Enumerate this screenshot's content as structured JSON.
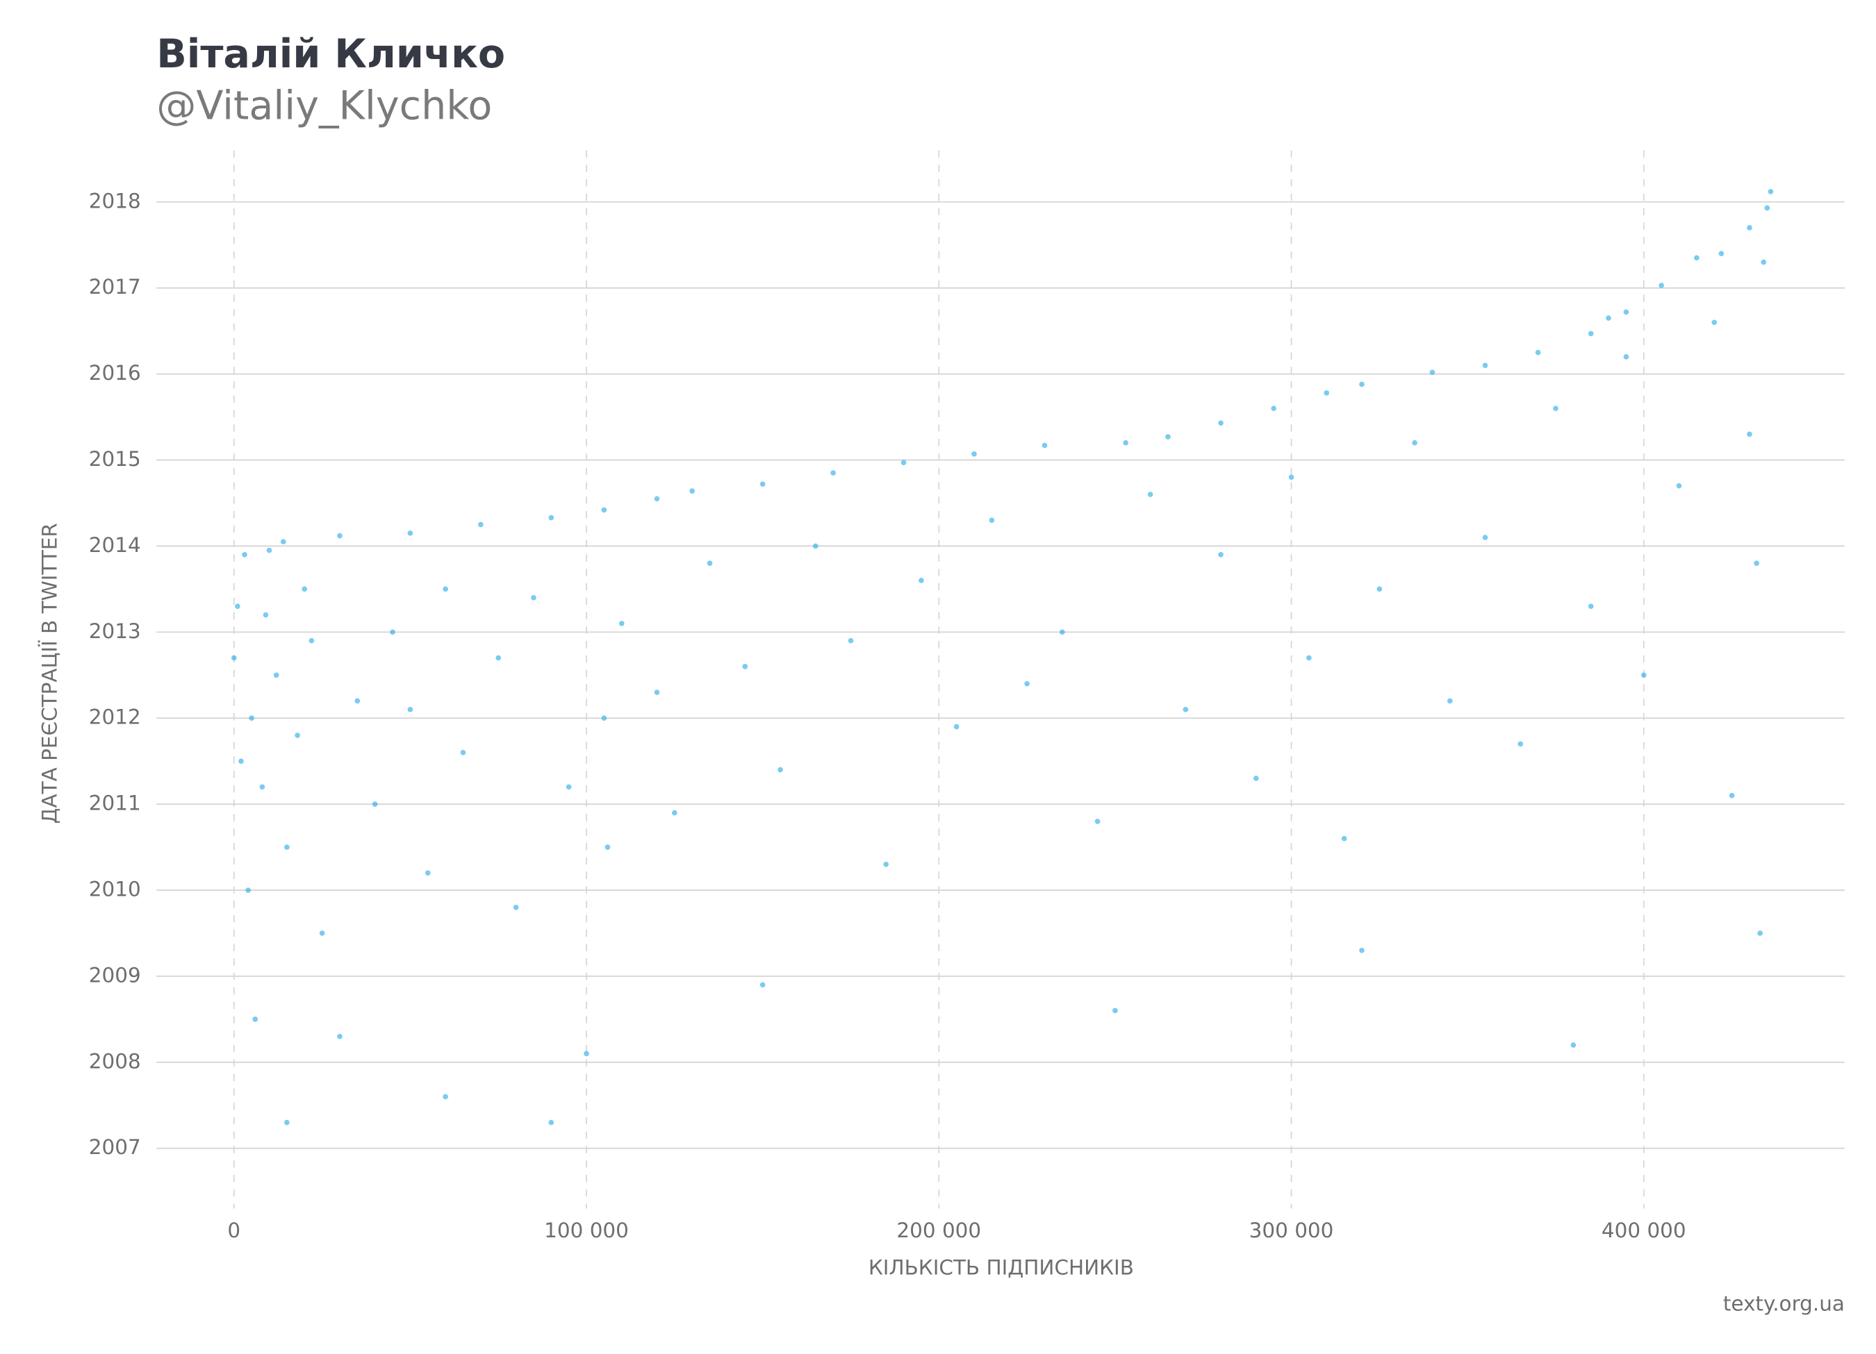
{
  "chart_data": {
    "type": "scatter",
    "title": "Віталій Кличко",
    "subtitle": "@Vitaliy_Klychko",
    "x_label": "КІЛЬКІСТЬ ПІДПИСНИКІВ",
    "y_label": "ДАТА РЕЄСТРАЦІЇ В TWITTER",
    "source": "texty.org.ua",
    "color": "#1ea8e8",
    "grid": true,
    "xlim": [
      -22000,
      457000
    ],
    "ylim": [
      2006.3,
      2018.6
    ],
    "xticks": [
      0,
      {
        "value": 100000,
        "label": "100 000"
      },
      {
        "value": 200000,
        "label": "200 000"
      },
      {
        "value": 300000,
        "label": "300 000"
      },
      {
        "value": 400000,
        "label": "400 000"
      }
    ],
    "yticks": [
      2007,
      2008,
      2009,
      2010,
      2011,
      2012,
      2013,
      2014,
      2015,
      2016,
      2017,
      2018
    ],
    "x": [
      0,
      1000,
      3000,
      10000,
      14000,
      30000,
      50000,
      70000,
      90000,
      105000,
      120000,
      130000,
      150000,
      170000,
      190000,
      210000,
      230000,
      253000,
      265000,
      280000,
      295000,
      310000,
      320000,
      340000,
      355000,
      370000,
      385000,
      390000,
      395000,
      405000,
      415000,
      422000,
      430000,
      435000,
      436000,
      2000,
      5000,
      8000,
      12000,
      15000,
      18000,
      22000,
      25000,
      4000,
      9000,
      20000,
      6000,
      15000,
      35000,
      40000,
      45000,
      50000,
      55000,
      60000,
      65000,
      75000,
      80000,
      85000,
      95000,
      105000,
      106000,
      110000,
      120000,
      125000,
      135000,
      145000,
      155000,
      165000,
      175000,
      185000,
      195000,
      205000,
      215000,
      225000,
      235000,
      245000,
      260000,
      270000,
      280000,
      290000,
      300000,
      305000,
      315000,
      325000,
      335000,
      345000,
      355000,
      365000,
      375000,
      385000,
      395000,
      400000,
      410000,
      420000,
      425000,
      430000,
      434000,
      432000,
      433000,
      380000,
      320000,
      250000,
      150000,
      100000,
      30000,
      60000,
      90000
    ],
    "y": [
      2012.7,
      2013.3,
      2013.9,
      2013.95,
      2014.05,
      2014.12,
      2014.15,
      2014.25,
      2014.33,
      2014.42,
      2014.55,
      2014.64,
      2014.72,
      2014.85,
      2014.97,
      2015.07,
      2015.17,
      2015.2,
      2015.27,
      2015.43,
      2015.6,
      2015.78,
      2015.88,
      2016.02,
      2016.1,
      2016.25,
      2016.47,
      2016.65,
      2016.72,
      2017.03,
      2017.35,
      2017.4,
      2017.7,
      2017.93,
      2018.12,
      2011.5,
      2012,
      2011.2,
      2012.5,
      2010.5,
      2011.8,
      2012.9,
      2009.5,
      2010,
      2013.2,
      2013.5,
      2008.5,
      2007.3,
      2012.2,
      2011,
      2013,
      2012.1,
      2010.2,
      2013.5,
      2011.6,
      2012.7,
      2009.8,
      2013.4,
      2011.2,
      2012,
      2010.5,
      2013.1,
      2012.3,
      2010.9,
      2013.8,
      2012.6,
      2011.4,
      2014,
      2012.9,
      2010.3,
      2013.6,
      2011.9,
      2014.3,
      2012.4,
      2013,
      2010.8,
      2014.6,
      2012.1,
      2013.9,
      2011.3,
      2014.8,
      2012.7,
      2010.6,
      2013.5,
      2015.2,
      2012.2,
      2014.1,
      2011.7,
      2015.6,
      2013.3,
      2016.2,
      2012.5,
      2014.7,
      2016.6,
      2011.1,
      2015.3,
      2017.3,
      2013.8,
      2009.5,
      2008.2,
      2009.3,
      2008.6,
      2008.9,
      2008.1,
      2008.3,
      2007.6,
      2007.3
    ]
  }
}
